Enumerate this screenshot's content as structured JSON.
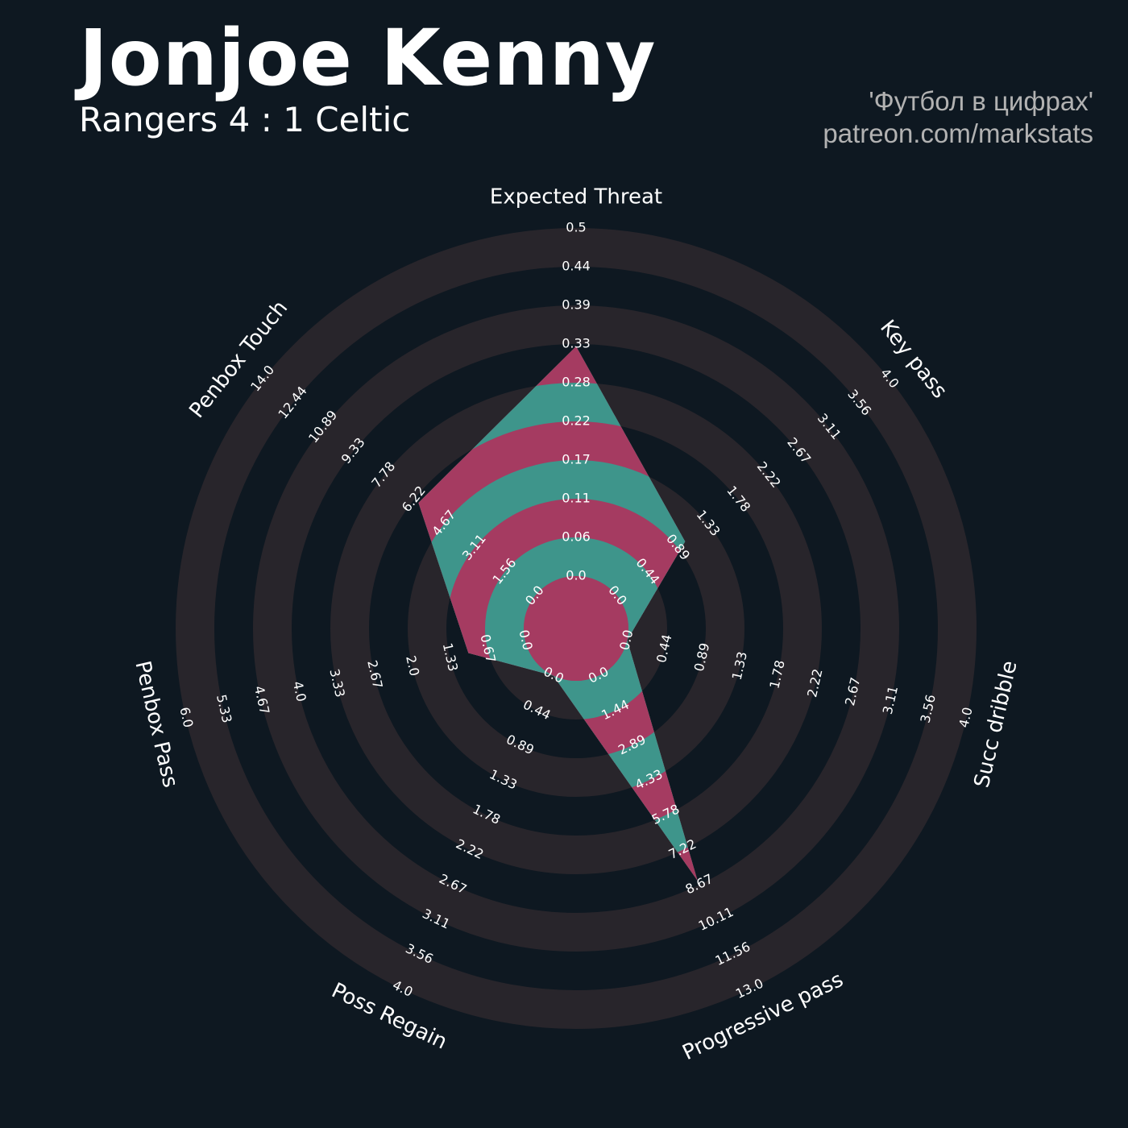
{
  "header": {
    "player": "Jonjoe Kenny",
    "match": "Rangers 4 : 1 Celtic",
    "credit_line1": "'Футбол в цифрах'",
    "credit_line2": "patreon.com/markstats"
  },
  "colors": {
    "background": "#0e1821",
    "ring": "#28252b",
    "fill_teal": "#3e958b",
    "fill_pink": "#a53b61",
    "text": "#ffffff",
    "credit": "#b2b2b2"
  },
  "chart_data": {
    "type": "radar",
    "title": "Jonjoe Kenny",
    "subtitle": "Rangers 4 : 1 Celtic",
    "parameters": [
      {
        "name": "Expected Threat",
        "min": 0.0,
        "max": 0.5,
        "value": 0.33,
        "ticks": [
          "0.0",
          "0.06",
          "0.11",
          "0.17",
          "0.22",
          "0.28",
          "0.33",
          "0.39",
          "0.44",
          "0.5"
        ]
      },
      {
        "name": "Key pass",
        "min": 0.0,
        "max": 4.0,
        "value": 1.0,
        "ticks": [
          "0.0",
          "0.44",
          "0.89",
          "1.33",
          "1.78",
          "2.22",
          "2.67",
          "3.11",
          "3.56",
          "4.0"
        ]
      },
      {
        "name": "Succ dribble",
        "min": 0.0,
        "max": 4.0,
        "value": 0.0,
        "ticks": [
          "0.0",
          "0.44",
          "0.89",
          "1.33",
          "1.78",
          "2.22",
          "2.67",
          "3.11",
          "3.56",
          "4.0"
        ]
      },
      {
        "name": "Progressive pass",
        "min": 0.0,
        "max": 13.0,
        "value": 8.5,
        "ticks": [
          "0.0",
          "1.44",
          "2.89",
          "4.33",
          "5.78",
          "7.22",
          "8.67",
          "10.11",
          "11.56",
          "13.0"
        ]
      },
      {
        "name": "Poss Regain",
        "min": 0.0,
        "max": 4.0,
        "value": 0.0,
        "ticks": [
          "0.0",
          "0.44",
          "0.89",
          "1.33",
          "1.78",
          "2.22",
          "2.67",
          "3.11",
          "3.56",
          "4.0"
        ]
      },
      {
        "name": "Penbox Pass",
        "min": 0.0,
        "max": 6.0,
        "value": 1.0,
        "ticks": [
          "0.0",
          "0.67",
          "1.33",
          "2.0",
          "2.67",
          "3.33",
          "4.0",
          "4.67",
          "5.33",
          "6.0"
        ]
      },
      {
        "name": "Penbox Touch",
        "min": 0.0,
        "max": 14.0,
        "value": 6.0,
        "ticks": [
          "0.0",
          "1.56",
          "3.11",
          "4.67",
          "6.22",
          "7.78",
          "9.33",
          "10.89",
          "12.44",
          "14.0"
        ]
      }
    ]
  }
}
